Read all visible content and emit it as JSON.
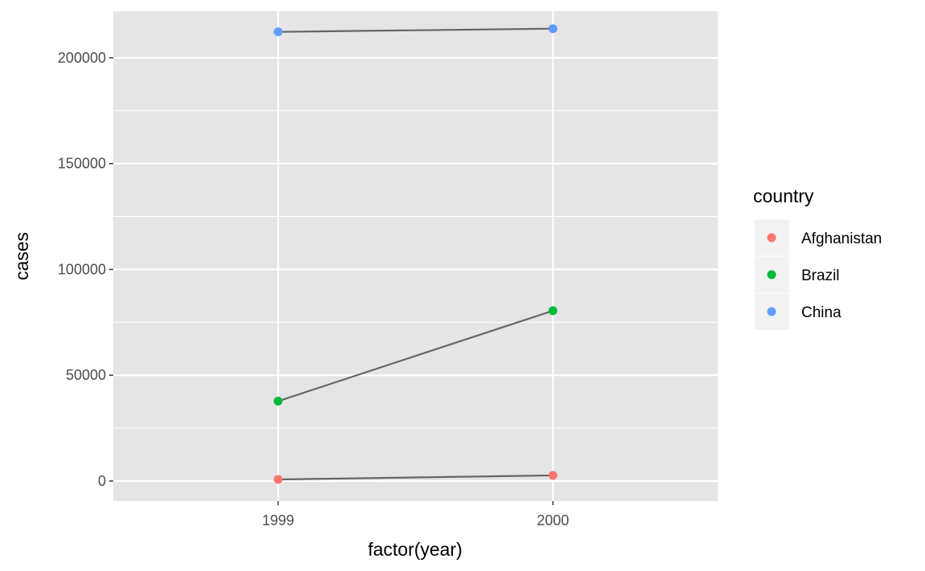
{
  "chart_data": {
    "type": "line",
    "title": "",
    "xlabel": "factor(year)",
    "ylabel": "cases",
    "categories": [
      "1999",
      "2000"
    ],
    "ylim": [
      -9500,
      222000
    ],
    "yticks": [
      0,
      50000,
      100000,
      150000,
      200000
    ],
    "ytick_labels": [
      "0",
      "50000",
      "100000",
      "150000",
      "200000"
    ],
    "grid": true,
    "legend": {
      "title": "country",
      "position": "right"
    },
    "series": [
      {
        "name": "Afghanistan",
        "color": "#F8766D",
        "values": [
          745,
          2666
        ]
      },
      {
        "name": "Brazil",
        "color": "#00BA38",
        "values": [
          37737,
          80488
        ]
      },
      {
        "name": "China",
        "color": "#619CFF",
        "values": [
          212258,
          213766
        ]
      }
    ],
    "line_color": "#666666",
    "panel_bg": "#E5E5E5",
    "grid_color": "#FFFFFF"
  }
}
